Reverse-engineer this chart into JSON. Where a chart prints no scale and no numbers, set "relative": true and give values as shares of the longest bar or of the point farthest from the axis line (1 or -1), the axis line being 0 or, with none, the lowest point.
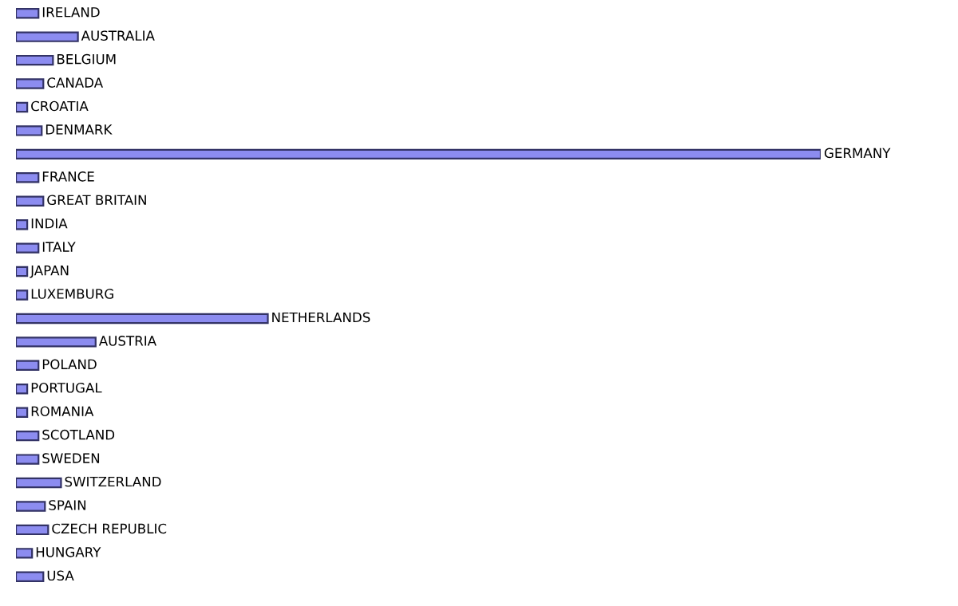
{
  "chart_data": {
    "type": "bar",
    "orientation": "horizontal",
    "relative": true,
    "color": "#8c8cf0",
    "categories": [
      "IRELAND",
      "AUSTRALIA",
      "BELGIUM",
      "CANADA",
      "CROATIA",
      "DENMARK",
      "GERMANY",
      "FRANCE",
      "GREAT BRITAIN",
      "INDIA",
      "ITALY",
      "JAPAN",
      "LUXEMBURG",
      "NETHERLANDS",
      "AUSTRIA",
      "POLAND",
      "PORTUGAL",
      "ROMANIA",
      "SCOTLAND",
      "SWEDEN",
      "SWITZERLAND",
      "SPAIN",
      "CZECH REPUBLIC",
      "HUNGARY",
      "USA"
    ],
    "values": [
      0.028,
      0.077,
      0.046,
      0.034,
      0.014,
      0.032,
      1,
      0.028,
      0.034,
      0.014,
      0.028,
      0.014,
      0.014,
      0.313,
      0.099,
      0.028,
      0.014,
      0.014,
      0.028,
      0.028,
      0.056,
      0.036,
      0.04,
      0.02,
      0.034
    ]
  }
}
